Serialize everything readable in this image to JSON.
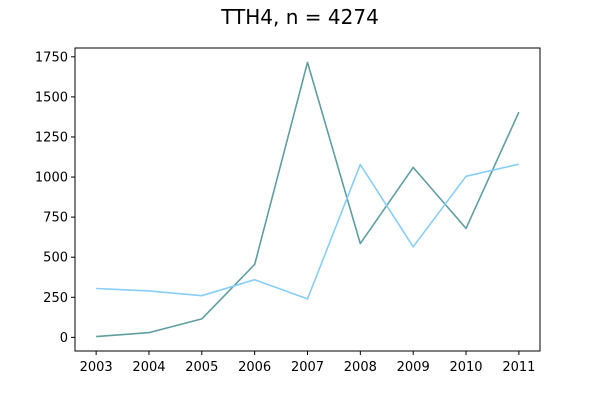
{
  "chart_data": {
    "type": "line",
    "title": "TTH4, n = 4274",
    "xlabel": "",
    "ylabel": "",
    "x": [
      2003,
      2004,
      2005,
      2006,
      2007,
      2008,
      2009,
      2010,
      2011
    ],
    "x_tick_labels": [
      "2003",
      "2004",
      "2005",
      "2006",
      "2007",
      "2008",
      "2009",
      "2010",
      "2011"
    ],
    "y_ticks": [
      0,
      250,
      500,
      750,
      1000,
      1250,
      1500,
      1750
    ],
    "y_tick_labels": [
      "0",
      "250",
      "500",
      "750",
      "1000",
      "1250",
      "1500",
      "1750"
    ],
    "xlim": [
      2002.6,
      2011.4
    ],
    "ylim": [
      -85,
      1805
    ],
    "grid": false,
    "series": [
      {
        "color": "#5f9ea0",
        "values": [
          5,
          30,
          115,
          455,
          1715,
          585,
          1060,
          680,
          1405
        ]
      },
      {
        "color": "#87cefa",
        "values": [
          305,
          290,
          260,
          360,
          240,
          1078,
          565,
          1005,
          1080
        ]
      }
    ]
  }
}
